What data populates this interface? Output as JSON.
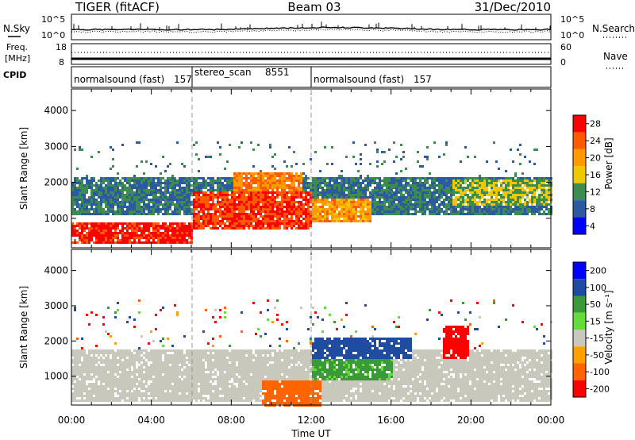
{
  "header": {
    "radar": "TIGER (fitACF)",
    "beam": "Beam 03",
    "date": "31/Dec/2010"
  },
  "noise_panel": {
    "left_label": "N.Sky",
    "right_label": "N.Search",
    "left_ticks": [
      "10^5",
      "10^0"
    ],
    "right_ticks": [
      "10^5",
      "10^0"
    ]
  },
  "freq_panel": {
    "left_label_top": "Freq.",
    "left_label_unit": "[MHz]",
    "right_label": "Nave",
    "left_ticks": [
      "18",
      "8"
    ],
    "right_ticks": [
      "60",
      "0"
    ]
  },
  "cpid": {
    "label": "CPID",
    "segments": [
      {
        "name": "normalsound (fast)",
        "id": "157",
        "start": "00:00",
        "end": "06:00"
      },
      {
        "name": "stereo_scan",
        "id": "8551",
        "start": "06:00",
        "end": "12:00"
      },
      {
        "name": "normalsound (fast)",
        "id": "157",
        "start": "12:00",
        "end": "24:00"
      }
    ]
  },
  "axes": {
    "ylabel": "Slant Range [km]",
    "xlabel": "Time UT",
    "y_ticks": [
      "4000",
      "3000",
      "2000",
      "1000"
    ],
    "x_ticks": [
      "00:00",
      "04:00",
      "08:00",
      "12:00",
      "16:00",
      "20:00",
      "00:00"
    ]
  },
  "power_colorbar": {
    "label": "Power [dB]",
    "ticks": [
      "28",
      "24",
      "20",
      "16",
      "12",
      "8",
      "4"
    ],
    "colors": [
      "#ff0000",
      "#ff5a00",
      "#ff9a00",
      "#f0c800",
      "#3c8c50",
      "#2c5aa0",
      "#0000ff"
    ]
  },
  "velocity_colorbar": {
    "label": "Velocity [m s⁻¹]",
    "ticks": [
      "200",
      "100",
      "50",
      "15",
      "-15",
      "-50",
      "-100",
      "-200"
    ],
    "colors": [
      "#0000ff",
      "#1e4ca0",
      "#3a9a3a",
      "#64dc3c",
      "#c8c8bc",
      "#ffa000",
      "#ff6400",
      "#ff0000"
    ]
  },
  "chart_data": [
    {
      "type": "heatmap",
      "title": "",
      "xlabel": "Time UT",
      "ylabel": "Slant Range [km]",
      "xlim": [
        "00:00",
        "24:00"
      ],
      "ylim": [
        180,
        4600
      ],
      "colorbar": {
        "label": "Power [dB]",
        "ticks": [
          28,
          24,
          20,
          16,
          12,
          8,
          4
        ]
      },
      "description_blobs": [
        {
          "t0": 0.0,
          "t1": 6.0,
          "r0": 300,
          "r1": 900,
          "value_db": 28
        },
        {
          "t0": 6.0,
          "t1": 12.0,
          "r0": 700,
          "r1": 1800,
          "value_db": 26
        },
        {
          "t0": 8.0,
          "t1": 11.5,
          "r0": 1400,
          "r1": 2300,
          "value_db": 22
        },
        {
          "t0": 12.0,
          "t1": 15.0,
          "r0": 900,
          "r1": 1600,
          "value_db": 20
        },
        {
          "t0": 0.0,
          "t1": 24.0,
          "r0": 1100,
          "r1": 2200,
          "value_db": 10
        },
        {
          "t0": 19.0,
          "t1": 24.0,
          "r0": 1400,
          "r1": 2100,
          "value_db": 14
        }
      ]
    },
    {
      "type": "heatmap",
      "title": "",
      "xlabel": "Time UT",
      "ylabel": "Slant Range [km]",
      "xlim": [
        "00:00",
        "24:00"
      ],
      "ylim": [
        180,
        4600
      ],
      "colorbar": {
        "label": "Velocity [m s⁻¹]",
        "ticks": [
          200,
          100,
          50,
          15,
          -15,
          -50,
          -100,
          -200
        ]
      },
      "description_blobs": [
        {
          "t0": 0.0,
          "t1": 24.0,
          "r0": 300,
          "r1": 1800,
          "value_ms": 0
        },
        {
          "t0": 9.5,
          "t1": 12.5,
          "r0": 200,
          "r1": 900,
          "value_ms": -80
        },
        {
          "t0": 12.0,
          "t1": 16.0,
          "r0": 900,
          "r1": 1600,
          "value_ms": 60
        },
        {
          "t0": 12.0,
          "t1": 17.0,
          "r0": 1500,
          "r1": 2100,
          "value_ms": 180
        },
        {
          "t0": 18.5,
          "t1": 19.8,
          "r0": 1500,
          "r1": 2500,
          "value_ms": -180
        }
      ]
    }
  ]
}
